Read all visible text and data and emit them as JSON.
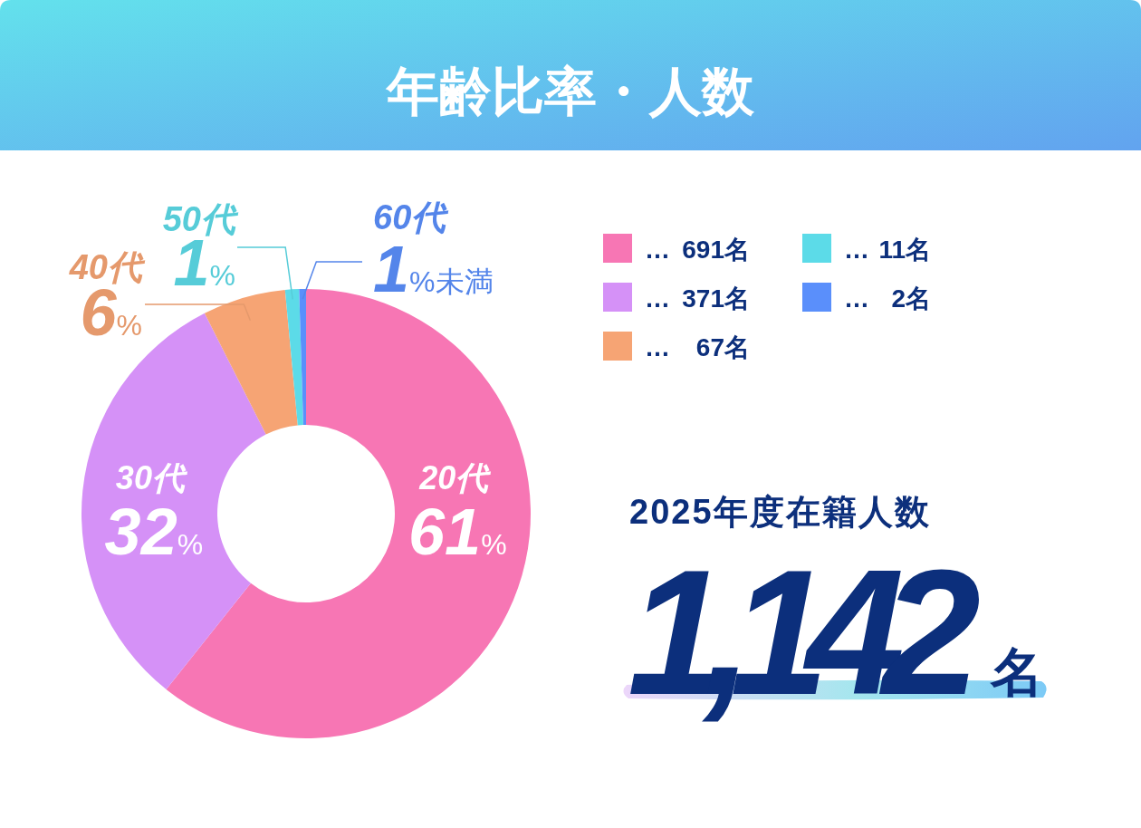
{
  "chart_data": {
    "type": "donut",
    "title": "年齢比率・人数",
    "categories": [
      "20代",
      "30代",
      "40代",
      "50代",
      "60代"
    ],
    "values": [
      61,
      32,
      6,
      1,
      0.5
    ],
    "colors": [
      "#f776b4",
      "#d591f7",
      "#f6a474",
      "#5cdbe8",
      "#5a8ffb"
    ],
    "value_labels": [
      "61%",
      "32%",
      "6%",
      "1%",
      "1%未満"
    ],
    "annotations": [
      "… 691名",
      "… 371名",
      "… 67名",
      "… 11名",
      "… 2名",
      "2025年度在籍人数",
      "1,142名"
    ]
  }
}
